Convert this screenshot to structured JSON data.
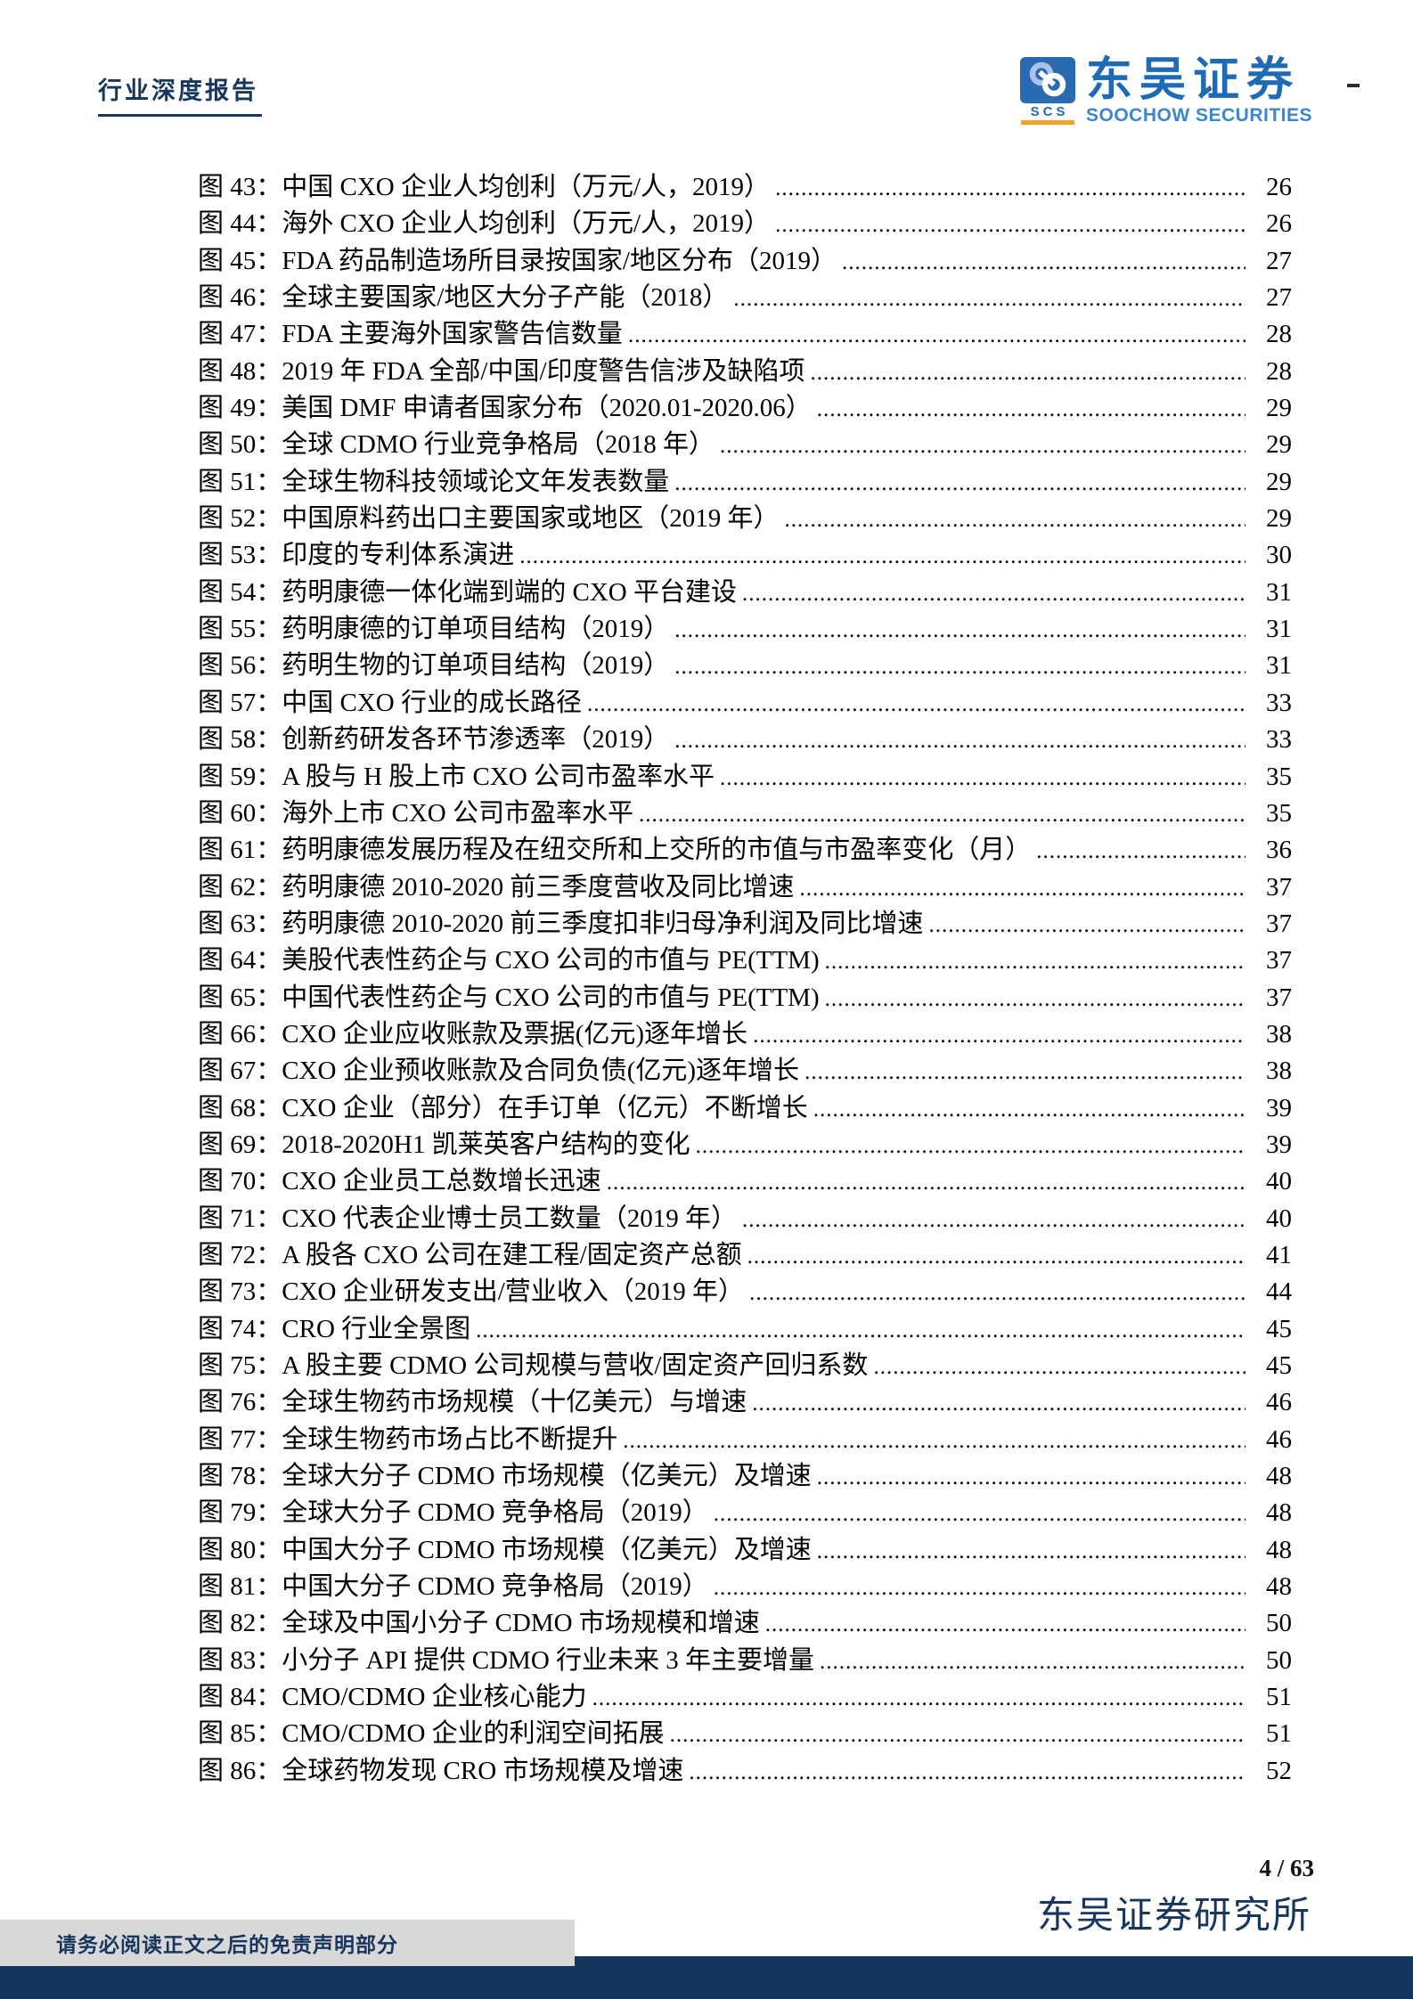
{
  "header": {
    "report_type": "行业深度报告",
    "logo": {
      "icon_label": "SCS",
      "brand_cn": "东吴证券",
      "brand_en": "SOOCHOW SECURITIES"
    }
  },
  "toc": {
    "entries": [
      {
        "label": "图 43：",
        "title": "中国 CXO 企业人均创利（万元/人，2019）",
        "page": "26"
      },
      {
        "label": "图 44：",
        "title": "海外 CXO 企业人均创利（万元/人，2019）",
        "page": "26"
      },
      {
        "label": "图 45：",
        "title": "FDA 药品制造场所目录按国家/地区分布（2019）",
        "page": "27"
      },
      {
        "label": "图 46：",
        "title": "全球主要国家/地区大分子产能（2018）",
        "page": "27"
      },
      {
        "label": "图 47：",
        "title": "FDA 主要海外国家警告信数量",
        "page": "28"
      },
      {
        "label": "图 48：",
        "title": "2019 年 FDA 全部/中国/印度警告信涉及缺陷项",
        "page": "28"
      },
      {
        "label": "图 49：",
        "title": "美国 DMF 申请者国家分布（2020.01-2020.06）",
        "page": "29"
      },
      {
        "label": "图 50：",
        "title": "全球 CDMO 行业竞争格局（2018 年）",
        "page": "29"
      },
      {
        "label": "图 51：",
        "title": "全球生物科技领域论文年发表数量",
        "page": "29"
      },
      {
        "label": "图 52：",
        "title": "中国原料药出口主要国家或地区（2019 年）",
        "page": "29"
      },
      {
        "label": "图 53：",
        "title": "印度的专利体系演进",
        "page": "30"
      },
      {
        "label": "图 54：",
        "title": "药明康德一体化端到端的 CXO 平台建设",
        "page": "31"
      },
      {
        "label": "图 55：",
        "title": "药明康德的订单项目结构（2019）",
        "page": "31"
      },
      {
        "label": "图 56：",
        "title": "药明生物的订单项目结构（2019）",
        "page": "31"
      },
      {
        "label": "图 57：",
        "title": "中国 CXO 行业的成长路径",
        "page": "33"
      },
      {
        "label": "图 58：",
        "title": "创新药研发各环节渗透率（2019）",
        "page": "33"
      },
      {
        "label": "图 59：",
        "title": "A 股与 H 股上市 CXO 公司市盈率水平",
        "page": "35"
      },
      {
        "label": "图 60：",
        "title": "海外上市 CXO 公司市盈率水平",
        "page": "35"
      },
      {
        "label": "图 61：",
        "title": "药明康德发展历程及在纽交所和上交所的市值与市盈率变化（月）",
        "page": "36"
      },
      {
        "label": "图 62：",
        "title": "药明康德 2010-2020 前三季度营收及同比增速",
        "page": "37"
      },
      {
        "label": "图 63：",
        "title": "药明康德 2010-2020 前三季度扣非归母净利润及同比增速",
        "page": "37"
      },
      {
        "label": "图 64：",
        "title": "美股代表性药企与 CXO 公司的市值与 PE(TTM)",
        "page": "37"
      },
      {
        "label": "图 65：",
        "title": "中国代表性药企与 CXO 公司的市值与 PE(TTM)",
        "page": "37"
      },
      {
        "label": "图 66：",
        "title": "CXO 企业应收账款及票据(亿元)逐年增长",
        "page": "38"
      },
      {
        "label": "图 67：",
        "title": "CXO 企业预收账款及合同负债(亿元)逐年增长",
        "page": "38"
      },
      {
        "label": "图 68：",
        "title": "CXO 企业（部分）在手订单（亿元）不断增长",
        "page": "39"
      },
      {
        "label": "图 69：",
        "title": "2018-2020H1 凯莱英客户结构的变化",
        "page": "39"
      },
      {
        "label": "图 70：",
        "title": "CXO 企业员工总数增长迅速",
        "page": "40"
      },
      {
        "label": "图 71：",
        "title": "CXO 代表企业博士员工数量（2019 年）",
        "page": "40"
      },
      {
        "label": "图 72：",
        "title": "A 股各 CXO 公司在建工程/固定资产总额",
        "page": "41"
      },
      {
        "label": "图 73：",
        "title": "CXO 企业研发支出/营业收入（2019 年）",
        "page": "44"
      },
      {
        "label": "图 74：",
        "title": "CRO 行业全景图",
        "page": "45"
      },
      {
        "label": "图 75：",
        "title": "A 股主要 CDMO 公司规模与营收/固定资产回归系数",
        "page": "45"
      },
      {
        "label": "图 76：",
        "title": "全球生物药市场规模（十亿美元）与增速",
        "page": "46"
      },
      {
        "label": "图 77：",
        "title": "全球生物药市场占比不断提升",
        "page": "46"
      },
      {
        "label": "图 78：",
        "title": "全球大分子 CDMO 市场规模（亿美元）及增速",
        "page": "48"
      },
      {
        "label": "图 79：",
        "title": "全球大分子 CDMO 竞争格局（2019）",
        "page": "48"
      },
      {
        "label": "图 80：",
        "title": "中国大分子 CDMO 市场规模（亿美元）及增速",
        "page": "48"
      },
      {
        "label": "图 81：",
        "title": "中国大分子 CDMO 竞争格局（2019）",
        "page": "48"
      },
      {
        "label": "图 82：",
        "title": "全球及中国小分子 CDMO 市场规模和增速",
        "page": "50"
      },
      {
        "label": "图 83：",
        "title": "小分子 API 提供 CDMO 行业未来 3 年主要增量",
        "page": "50"
      },
      {
        "label": "图 84：",
        "title": "CMO/CDMO 企业核心能力",
        "page": "51"
      },
      {
        "label": "图 85：",
        "title": "CMO/CDMO 企业的利润空间拓展",
        "page": "51"
      },
      {
        "label": "图 86：",
        "title": "全球药物发现 CRO 市场规模及增速",
        "page": "52"
      }
    ]
  },
  "footer": {
    "page_indicator": "4 / 63",
    "institute": "东吴证券研究所",
    "disclaimer": "请务必阅读正文之后的免责声明部分"
  },
  "colors": {
    "navy": "#17365d",
    "logo_blue": "#1e6ab4",
    "logo_light_blue": "#a9c4e6",
    "logo_en_blue": "#3f86c8",
    "orange": "#f2a32a",
    "gray_box": "#d8d8d8"
  }
}
